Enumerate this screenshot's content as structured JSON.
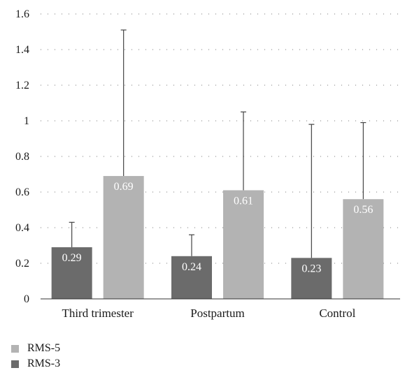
{
  "chart_data": {
    "type": "bar",
    "categories": [
      "Third trimester",
      "Postpartum",
      "Control"
    ],
    "series": [
      {
        "name": "RMS-3",
        "values": [
          0.29,
          0.24,
          0.23
        ],
        "error_upper": [
          0.43,
          0.36,
          0.98
        ],
        "color": "#6b6b6b"
      },
      {
        "name": "RMS-5",
        "values": [
          0.69,
          0.61,
          0.56
        ],
        "error_upper": [
          1.51,
          1.05,
          0.99
        ],
        "color": "#b3b3b3"
      }
    ],
    "ylim": [
      0,
      1.6
    ],
    "yticks": [
      "0",
      "0.2",
      "0.4",
      "0.6",
      "0.8",
      "1",
      "1.2",
      "1.4",
      "1.6"
    ],
    "data_labels": [
      [
        "0.29",
        "0.24",
        "0.23"
      ],
      [
        "0.69",
        "0.61",
        "0.56"
      ]
    ],
    "grid": "dotted-horizontal",
    "legend_position": "bottom-left",
    "legend": [
      {
        "label": "RMS-5",
        "color": "#b3b3b3"
      },
      {
        "label": "RMS-3",
        "color": "#6b6b6b"
      }
    ]
  }
}
